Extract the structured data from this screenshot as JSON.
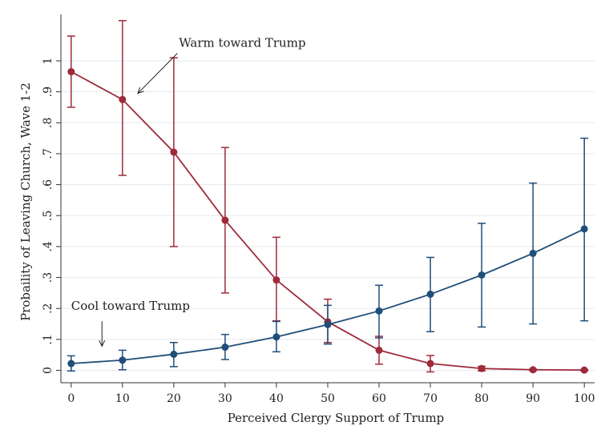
{
  "chart_data": {
    "type": "line",
    "title": "",
    "xlabel": "Perceived Clergy Support of Trump",
    "ylabel": "Probaility of Leaving Church, Wave 1-2",
    "x": [
      0,
      10,
      20,
      30,
      40,
      50,
      60,
      70,
      80,
      90,
      100
    ],
    "x_ticks": [
      0,
      10,
      20,
      30,
      40,
      50,
      60,
      70,
      80,
      90,
      100
    ],
    "x_tick_labels": [
      "0",
      "10",
      "20",
      "30",
      "40",
      "50",
      "60",
      "70",
      "80",
      "90",
      "100"
    ],
    "y_ticks": [
      0,
      0.1,
      0.2,
      0.3,
      0.4,
      0.5,
      0.6,
      0.7,
      0.8,
      0.9,
      1
    ],
    "y_tick_labels": [
      "0",
      ".1",
      ".2",
      ".3",
      ".4",
      ".5",
      ".6",
      ".7",
      ".8",
      ".9",
      "1"
    ],
    "xlim": [
      -2,
      102
    ],
    "ylim": [
      -0.04,
      1.15
    ],
    "grid": true,
    "series": [
      {
        "name": "Warm toward Trump",
        "color": "#9e2a3a",
        "values": [
          0.965,
          0.875,
          0.705,
          0.485,
          0.292,
          0.157,
          0.065,
          0.022,
          0.006,
          0.002,
          0.001
        ],
        "ci_low": [
          0.85,
          0.63,
          0.4,
          0.25,
          0.16,
          0.09,
          0.02,
          -0.005,
          -0.002,
          -0.001,
          -0.001
        ],
        "ci_high": [
          1.08,
          1.13,
          1.01,
          0.72,
          0.43,
          0.23,
          0.11,
          0.048,
          0.013,
          0.004,
          0.002
        ]
      },
      {
        "name": "Cool toward Trump",
        "color": "#1f4e79",
        "values": [
          0.022,
          0.033,
          0.052,
          0.075,
          0.108,
          0.148,
          0.192,
          0.246,
          0.308,
          0.378,
          0.457
        ],
        "ci_low": [
          -0.002,
          0.002,
          0.012,
          0.035,
          0.06,
          0.085,
          0.105,
          0.125,
          0.14,
          0.15,
          0.16
        ],
        "ci_high": [
          0.047,
          0.065,
          0.09,
          0.116,
          0.158,
          0.21,
          0.275,
          0.365,
          0.475,
          0.605,
          0.75
        ]
      }
    ],
    "annotations": [
      {
        "text": "Warm toward Trump",
        "x": 21,
        "y": 1.045,
        "arrow_to": {
          "x": 13,
          "y": 0.895
        }
      },
      {
        "text": "Cool toward Trump",
        "x": 0,
        "y": 0.195,
        "arrow_to": {
          "x": 6,
          "y": 0.078
        }
      }
    ]
  }
}
